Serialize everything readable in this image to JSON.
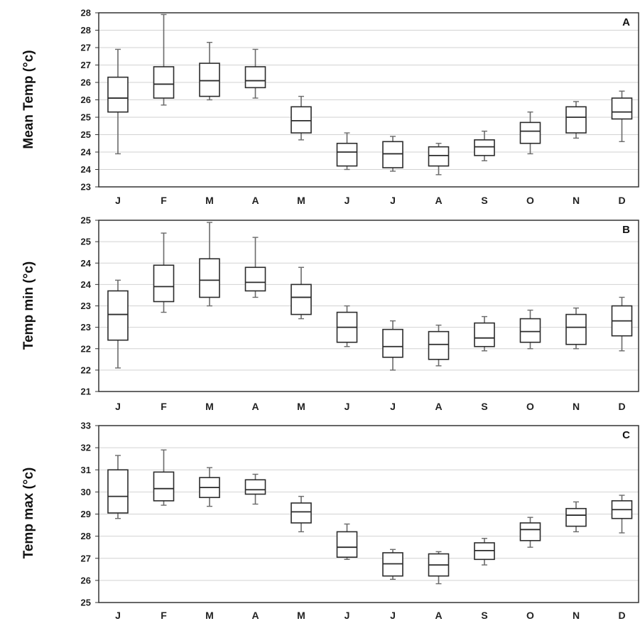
{
  "chart_data": [
    {
      "type": "box",
      "panel_label": "A",
      "ylabel": "Mean Temp (°c)",
      "ytick_labels": [
        "23",
        "24",
        "24",
        "25",
        "25",
        "26",
        "26",
        "27",
        "27",
        "28",
        "28"
      ],
      "ylim": [
        23,
        28
      ],
      "grid": true,
      "categories": [
        "J",
        "F",
        "M",
        "A",
        "M",
        "J",
        "J",
        "A",
        "S",
        "O",
        "N",
        "D"
      ],
      "boxes": [
        {
          "min": 23.95,
          "q1": 25.15,
          "median": 25.55,
          "q3": 26.15,
          "max": 26.95
        },
        {
          "min": 25.35,
          "q1": 25.55,
          "median": 25.95,
          "q3": 26.45,
          "max": 27.95
        },
        {
          "min": 25.5,
          "q1": 25.6,
          "median": 26.05,
          "q3": 26.55,
          "max": 27.15
        },
        {
          "min": 25.55,
          "q1": 25.85,
          "median": 26.05,
          "q3": 26.45,
          "max": 26.95
        },
        {
          "min": 24.35,
          "q1": 24.55,
          "median": 24.9,
          "q3": 25.3,
          "max": 25.6
        },
        {
          "min": 23.5,
          "q1": 23.6,
          "median": 24.0,
          "q3": 24.25,
          "max": 24.55
        },
        {
          "min": 23.45,
          "q1": 23.55,
          "median": 23.95,
          "q3": 24.3,
          "max": 24.45
        },
        {
          "min": 23.35,
          "q1": 23.6,
          "median": 23.9,
          "q3": 24.15,
          "max": 24.25
        },
        {
          "min": 23.75,
          "q1": 23.9,
          "median": 24.15,
          "q3": 24.35,
          "max": 24.6
        },
        {
          "min": 23.95,
          "q1": 24.25,
          "median": 24.6,
          "q3": 24.85,
          "max": 25.15
        },
        {
          "min": 24.4,
          "q1": 24.55,
          "median": 25.0,
          "q3": 25.3,
          "max": 25.45
        },
        {
          "min": 24.3,
          "q1": 24.95,
          "median": 25.15,
          "q3": 25.55,
          "max": 25.75
        }
      ]
    },
    {
      "type": "box",
      "panel_label": "B",
      "ylabel": "Temp min (°c)",
      "ytick_labels": [
        "21",
        "22",
        "22",
        "23",
        "23",
        "24",
        "24",
        "25",
        "25"
      ],
      "ylim": [
        21,
        25
      ],
      "grid": true,
      "categories": [
        "J",
        "F",
        "M",
        "A",
        "M",
        "J",
        "J",
        "A",
        "S",
        "O",
        "N",
        "D"
      ],
      "boxes": [
        {
          "min": 21.55,
          "q1": 22.2,
          "median": 22.8,
          "q3": 23.35,
          "max": 23.6
        },
        {
          "min": 22.85,
          "q1": 23.1,
          "median": 23.45,
          "q3": 23.95,
          "max": 24.7
        },
        {
          "min": 23.0,
          "q1": 23.2,
          "median": 23.6,
          "q3": 24.1,
          "max": 24.95
        },
        {
          "min": 23.2,
          "q1": 23.35,
          "median": 23.55,
          "q3": 23.9,
          "max": 24.6
        },
        {
          "min": 22.7,
          "q1": 22.8,
          "median": 23.2,
          "q3": 23.5,
          "max": 23.9
        },
        {
          "min": 22.05,
          "q1": 22.15,
          "median": 22.5,
          "q3": 22.85,
          "max": 23.0
        },
        {
          "min": 21.5,
          "q1": 21.8,
          "median": 22.05,
          "q3": 22.45,
          "max": 22.65
        },
        {
          "min": 21.6,
          "q1": 21.75,
          "median": 22.1,
          "q3": 22.4,
          "max": 22.55
        },
        {
          "min": 21.95,
          "q1": 22.05,
          "median": 22.25,
          "q3": 22.6,
          "max": 22.75
        },
        {
          "min": 22.0,
          "q1": 22.15,
          "median": 22.4,
          "q3": 22.7,
          "max": 22.9
        },
        {
          "min": 22.0,
          "q1": 22.1,
          "median": 22.5,
          "q3": 22.8,
          "max": 22.95
        },
        {
          "min": 21.95,
          "q1": 22.3,
          "median": 22.65,
          "q3": 23.0,
          "max": 23.2
        }
      ]
    },
    {
      "type": "box",
      "panel_label": "C",
      "ylabel": "Temp max (°c)",
      "ytick_labels": [
        "25",
        "26",
        "27",
        "28",
        "29",
        "30",
        "31",
        "32",
        "33"
      ],
      "ylim": [
        25,
        33
      ],
      "grid": true,
      "categories": [
        "J",
        "F",
        "M",
        "A",
        "M",
        "J",
        "J",
        "A",
        "S",
        "O",
        "N",
        "D"
      ],
      "boxes": [
        {
          "min": 28.8,
          "q1": 29.05,
          "median": 29.8,
          "q3": 31.0,
          "max": 31.65
        },
        {
          "min": 29.4,
          "q1": 29.6,
          "median": 30.15,
          "q3": 30.9,
          "max": 31.9
        },
        {
          "min": 29.35,
          "q1": 29.75,
          "median": 30.2,
          "q3": 30.65,
          "max": 31.1
        },
        {
          "min": 29.45,
          "q1": 29.9,
          "median": 30.1,
          "q3": 30.55,
          "max": 30.8
        },
        {
          "min": 28.2,
          "q1": 28.6,
          "median": 29.1,
          "q3": 29.5,
          "max": 29.8
        },
        {
          "min": 26.95,
          "q1": 27.05,
          "median": 27.5,
          "q3": 28.2,
          "max": 28.55
        },
        {
          "min": 26.05,
          "q1": 26.2,
          "median": 26.75,
          "q3": 27.25,
          "max": 27.4
        },
        {
          "min": 25.85,
          "q1": 26.2,
          "median": 26.7,
          "q3": 27.2,
          "max": 27.3
        },
        {
          "min": 26.7,
          "q1": 26.95,
          "median": 27.35,
          "q3": 27.7,
          "max": 27.9
        },
        {
          "min": 27.5,
          "q1": 27.8,
          "median": 28.3,
          "q3": 28.6,
          "max": 28.85
        },
        {
          "min": 28.2,
          "q1": 28.45,
          "median": 28.95,
          "q3": 29.25,
          "max": 29.55
        },
        {
          "min": 28.15,
          "q1": 28.8,
          "median": 29.2,
          "q3": 29.6,
          "max": 29.85
        }
      ]
    }
  ]
}
